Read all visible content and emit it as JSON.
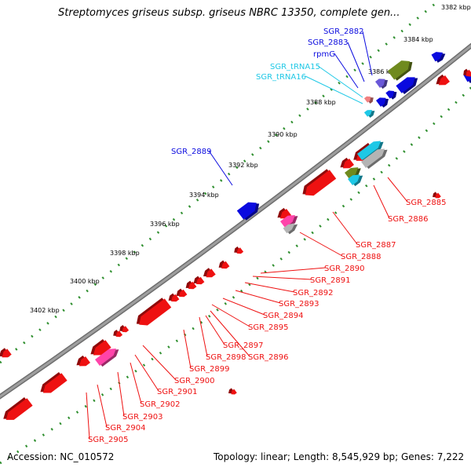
{
  "title": "Streptomyces griseus subsp. griseus NBRC 13350, complete gen...",
  "footer": {
    "accession": "Accession: NC_010572",
    "topology": "Topology: linear; Length: 8,545,929 bp; Genes: 7,222"
  },
  "colors": {
    "backbone": "#8a8a8a",
    "dots": "#2f8f2f",
    "red": "#ee1111",
    "blue": "#0a0adf",
    "olive": "#6f8a1e",
    "cyan": "#1ec8e6",
    "pink": "#ff44aa",
    "purple": "#6a58d8",
    "grey": "#b4b4b4"
  },
  "ticks": [
    "3382 kbp",
    "3384 kbp",
    "3386 kbp",
    "3388 kbp",
    "3390 kbp",
    "3392 kbp",
    "3394 kbp",
    "3396 kbp",
    "3398 kbp",
    "3400 kbp",
    "3402 kbp"
  ],
  "labels_top": [
    {
      "text": "SGR_2882",
      "color": "blue"
    },
    {
      "text": "SGR_2883",
      "color": "blue"
    },
    {
      "text": "rpmG",
      "color": "blue"
    },
    {
      "text": "SGR_tRNA15",
      "color": "cyan"
    },
    {
      "text": "SGR_tRNA16",
      "color": "cyan"
    },
    {
      "text": "SGR_2889",
      "color": "blue"
    }
  ],
  "labels_bottom": [
    "SGR_2885",
    "SGR_2886",
    "SGR_2887",
    "SGR_2888",
    "SGR_2890",
    "SGR_2891",
    "SGR_2892",
    "SGR_2893",
    "SGR_2894",
    "SGR_2895",
    "SGR_2896",
    "SGR_2897",
    "SGR_2898",
    "SGR_2899",
    "SGR_2900",
    "SGR_2901",
    "SGR_2902",
    "SGR_2903",
    "SGR_2904",
    "SGR_2905"
  ]
}
